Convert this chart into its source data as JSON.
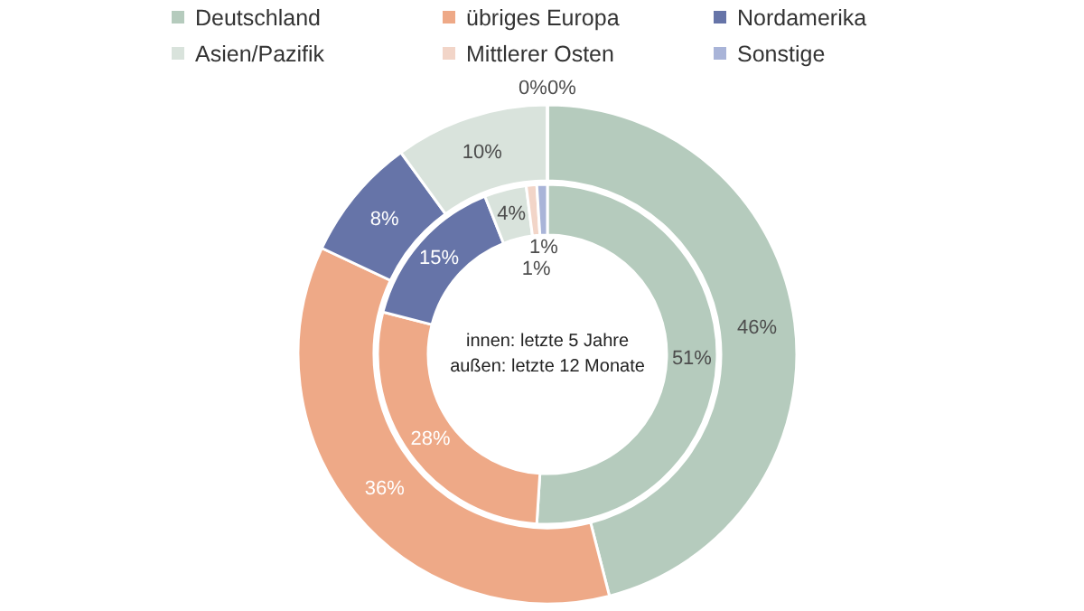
{
  "chart_data": {
    "type": "donut",
    "categories": [
      "Deutschland",
      "übriges Europa",
      "Nordamerika",
      "Asien/Pazifik",
      "Mittlerer Osten",
      "Sonstige"
    ],
    "colors": [
      "#b5cbbd",
      "#eea987",
      "#6674a8",
      "#d9e3dc",
      "#f2d5c8",
      "#a9b4d8"
    ],
    "series": [
      {
        "values": [
          46,
          36,
          8,
          10,
          0,
          0
        ],
        "value_labels": [
          "46%",
          "36%",
          "8%",
          "10%",
          "0%",
          "0%"
        ]
      },
      {
        "values": [
          51,
          28,
          15,
          4,
          1,
          1
        ],
        "value_labels": [
          "51%",
          "28%",
          "15%",
          "4%",
          "1%",
          "1%"
        ]
      }
    ],
    "annotations": [
      "innen: letzte 5 Jahre",
      "außen: letzte 12 Monate"
    ],
    "legend": "top"
  }
}
